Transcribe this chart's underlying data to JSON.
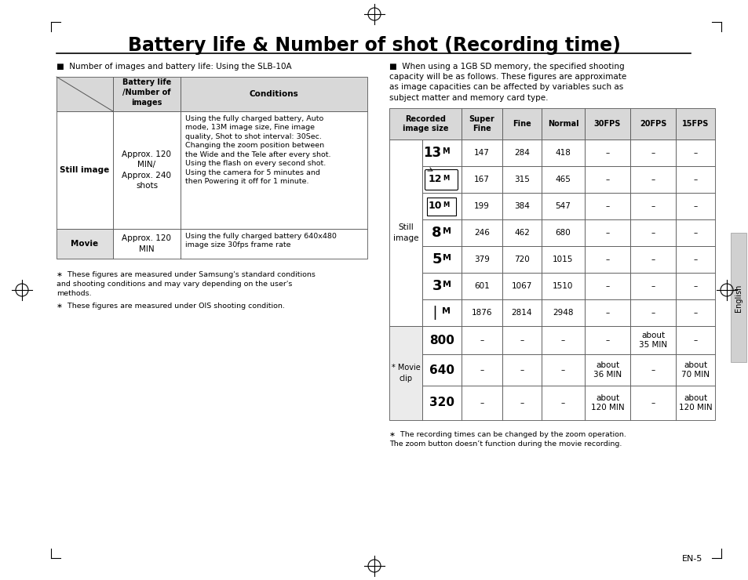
{
  "title": "Battery life & Number of shot (Recording time)",
  "page_number": "EN-5",
  "left_bullet": "Number of images and battery life: Using the SLB-10A",
  "right_bullet": "When using a 1GB SD memory, the specified shooting\ncapacity will be as follows. These figures are approximate\nas image capacities can be affected by variables such as\nsubject matter and memory card type.",
  "left_footnotes": [
    "These figures are measured under Samsung's standard conditions\nand shooting conditions and may vary depending on the user's\nmethods.",
    "These figures are measured under OIS shooting condition."
  ],
  "right_footnote": "The recording times can be changed by the zoom operation.\nThe zoom button doesn’t function during the movie recording.",
  "still_data": [
    [
      "13M",
      "147",
      "284",
      "418",
      "–",
      "–",
      "–"
    ],
    [
      "12M",
      "167",
      "315",
      "465",
      "–",
      "–",
      "–"
    ],
    [
      "10M",
      "199",
      "384",
      "547",
      "–",
      "–",
      "–"
    ],
    [
      "8M",
      "246",
      "462",
      "680",
      "–",
      "–",
      "–"
    ],
    [
      "5M",
      "379",
      "720",
      "1015",
      "–",
      "–",
      "–"
    ],
    [
      "3M",
      "601",
      "1067",
      "1510",
      "–",
      "–",
      "–"
    ],
    [
      "1M",
      "1876",
      "2814",
      "2948",
      "–",
      "–",
      "–"
    ]
  ],
  "movie_data": [
    [
      "800",
      "–",
      "–",
      "–",
      "–",
      "about\n35 MIN",
      "–"
    ],
    [
      "640",
      "–",
      "–",
      "–",
      "about\n36 MIN",
      "–",
      "about\n70 MIN"
    ],
    [
      "320",
      "–",
      "–",
      "–",
      "about\n120 MIN",
      "–",
      "about\n120 MIN"
    ]
  ],
  "bg_color": "#ffffff",
  "header_bg": "#d0d0d0",
  "movie_row_bg": "#eeeeee",
  "border_color": "#555555"
}
